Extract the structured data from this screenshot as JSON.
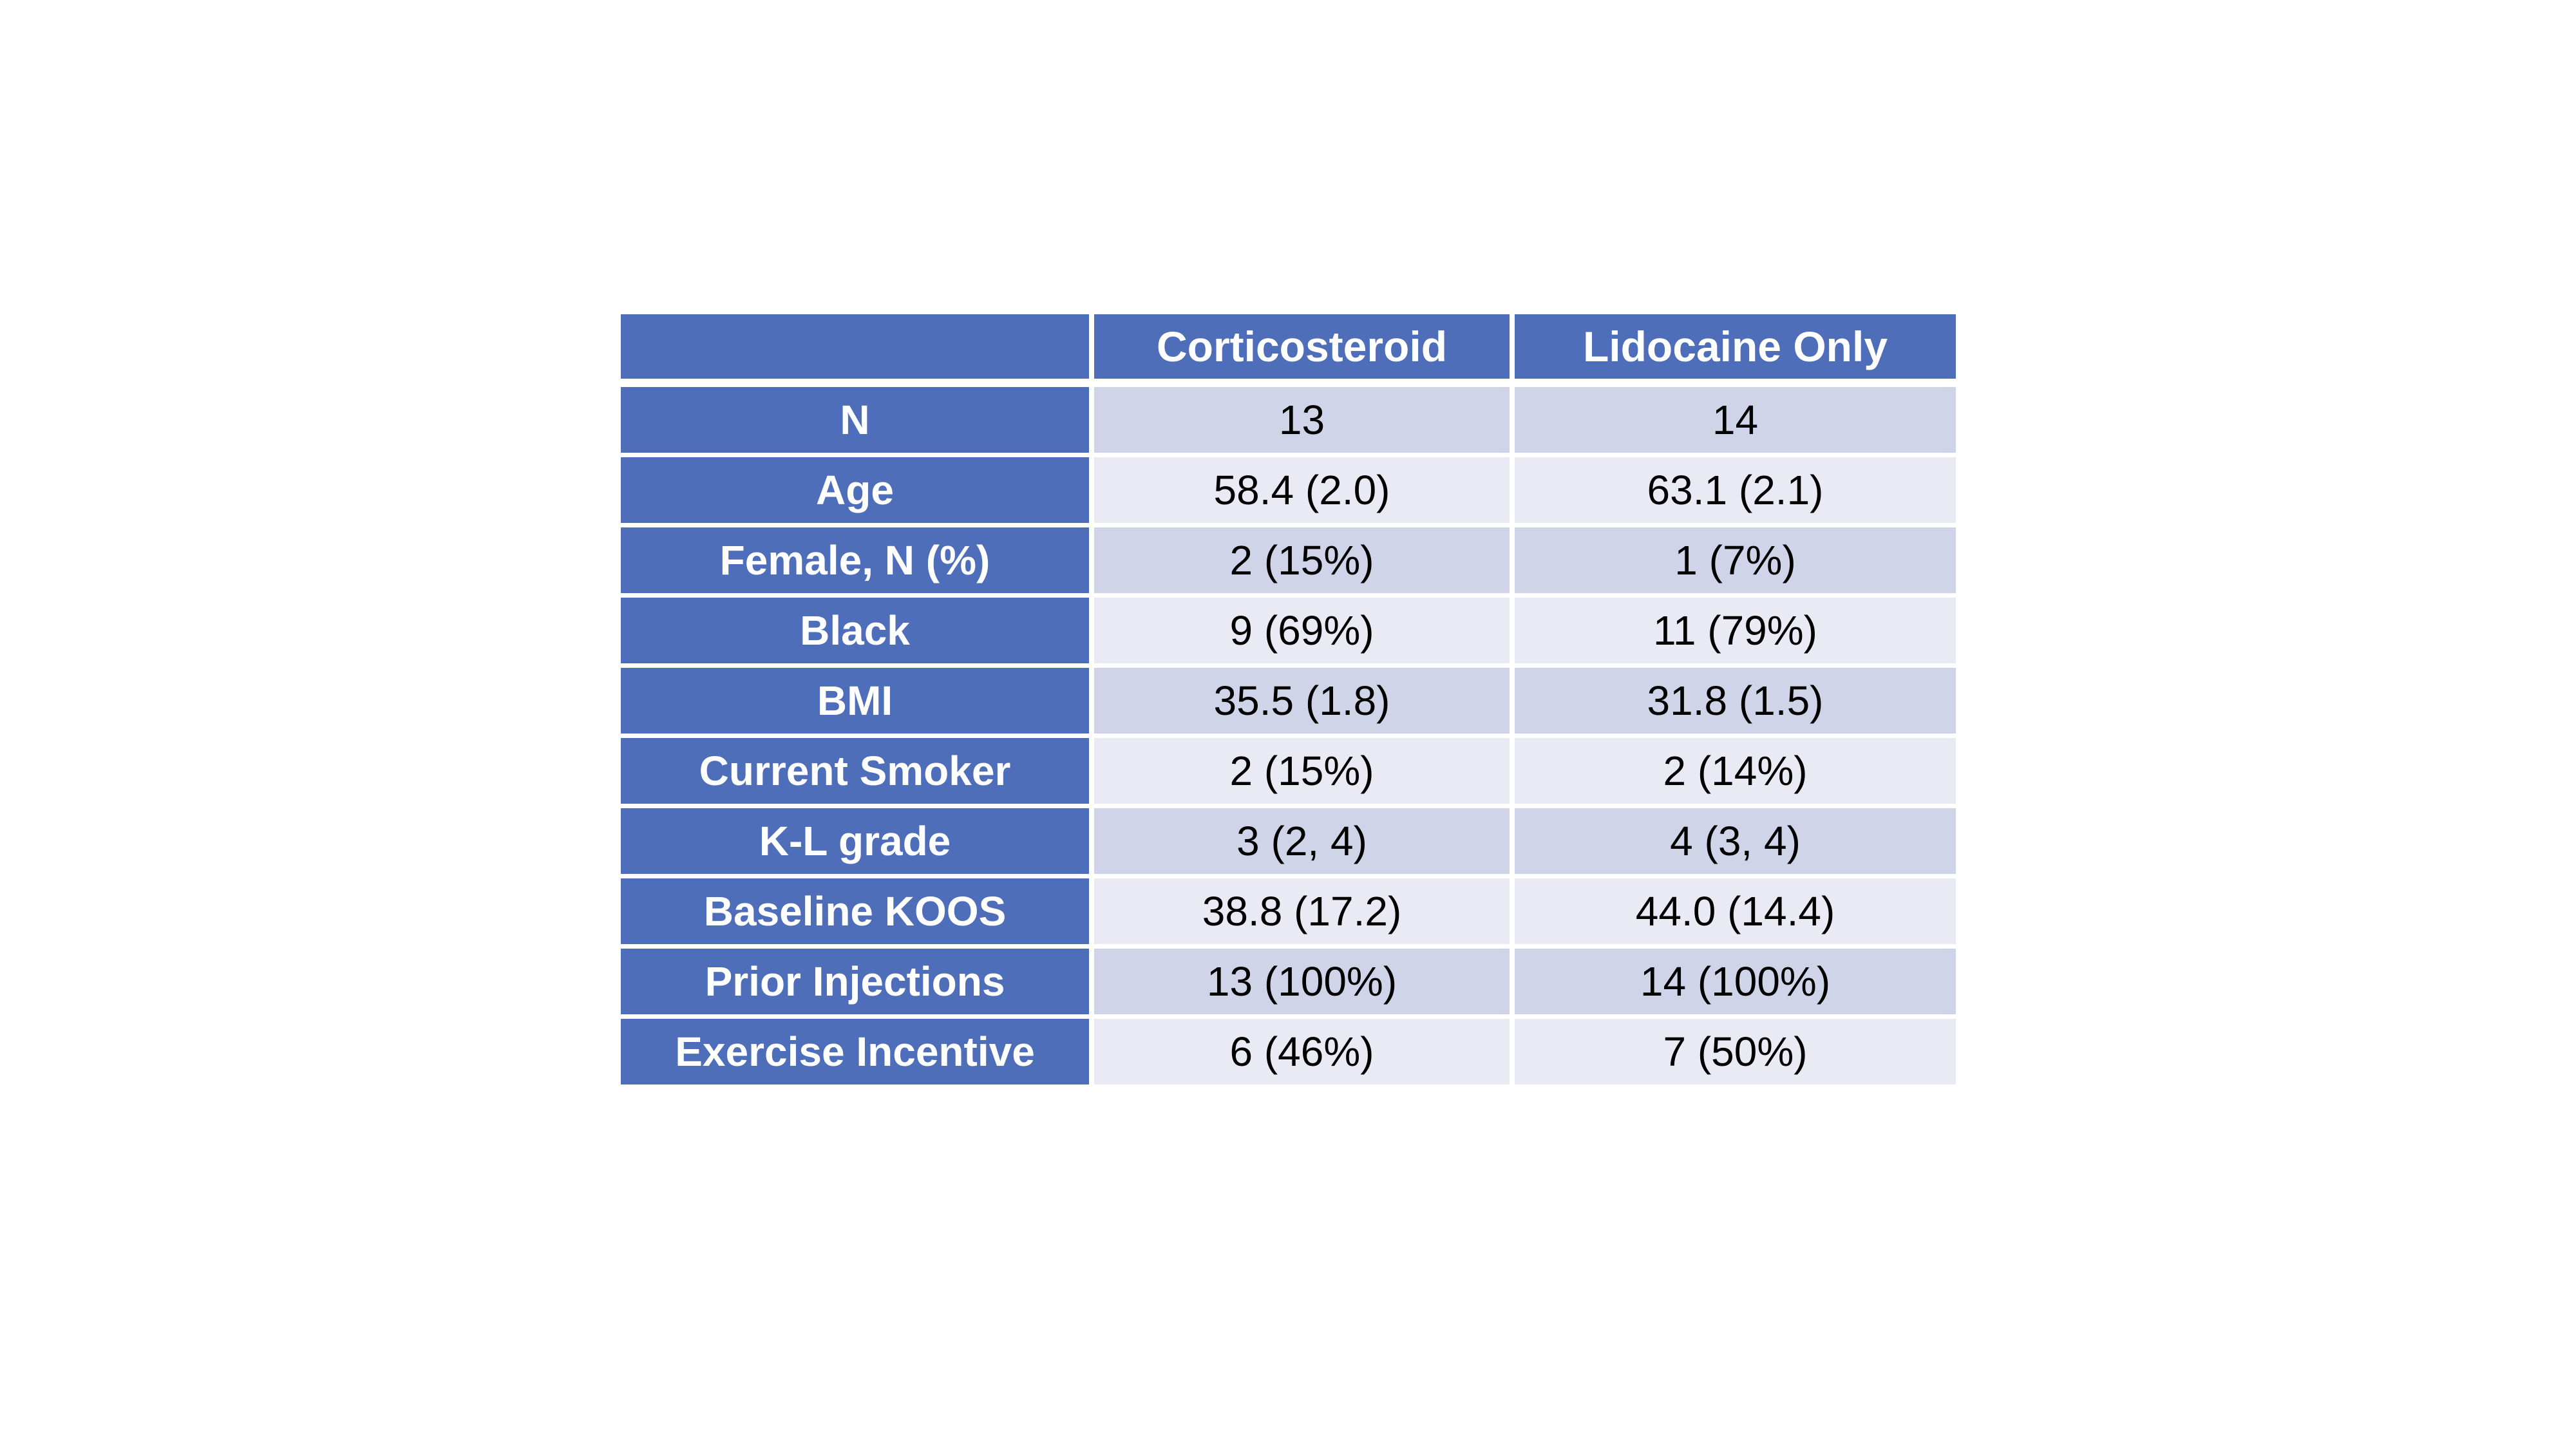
{
  "page": {
    "background": "#FFFFFF"
  },
  "table": {
    "header": {
      "col1_label": "",
      "col2_label": "Corticosteroid",
      "col3_label": "Lidocaine Only"
    },
    "rows": [
      {
        "label": "N",
        "corticosteroid": "13",
        "lidocaine": "14"
      },
      {
        "label": "Age",
        "corticosteroid": "58.4 (2.0)",
        "lidocaine": "63.1 (2.1)"
      },
      {
        "label": "Female, N (%)",
        "corticosteroid": "2 (15%)",
        "lidocaine": "1 (7%)"
      },
      {
        "label": "Black",
        "corticosteroid": "9 (69%)",
        "lidocaine": "11 (79%)"
      },
      {
        "label": "BMI",
        "corticosteroid": "35.5 (1.8)",
        "lidocaine": "31.8 (1.5)"
      },
      {
        "label": "Current Smoker",
        "corticosteroid": "2 (15%)",
        "lidocaine": "2 (14%)"
      },
      {
        "label": "K-L grade",
        "corticosteroid": "3 (2, 4)",
        "lidocaine": "4 (3, 4)"
      },
      {
        "label": "Baseline KOOS",
        "corticosteroid": "38.8 (17.2)",
        "lidocaine": "44.0 (14.4)"
      },
      {
        "label": "Prior Injections",
        "corticosteroid": "13 (100%)",
        "lidocaine": "14 (100%)"
      },
      {
        "label": "Exercise Incentive",
        "corticosteroid": "6 (46%)",
        "lidocaine": "7 (50%)"
      }
    ],
    "colors": {
      "header_blue": "#4E6EB9",
      "band_dark": "#CFD4E8",
      "band_light": "#E9EAF4",
      "header_text": "#FFFFFF",
      "body_text": "#000000",
      "grid_gap_white": "#FFFFFF"
    }
  },
  "chart_data": {
    "type": "table",
    "title": "",
    "columns": [
      "",
      "Corticosteroid",
      "Lidocaine Only"
    ],
    "rows": [
      [
        "N",
        "13",
        "14"
      ],
      [
        "Age",
        "58.4 (2.0)",
        "63.1 (2.1)"
      ],
      [
        "Female, N (%)",
        "2 (15%)",
        "1 (7%)"
      ],
      [
        "Black",
        "9 (69%)",
        "11 (79%)"
      ],
      [
        "BMI",
        "35.5 (1.8)",
        "31.8 (1.5)"
      ],
      [
        "Current Smoker",
        "2 (15%)",
        "2 (14%)"
      ],
      [
        "K-L grade",
        "3 (2, 4)",
        "4 (3, 4)"
      ],
      [
        "Baseline KOOS",
        "38.8 (17.2)",
        "44.0 (14.4)"
      ],
      [
        "Prior Injections",
        "13 (100%)",
        "14 (100%)"
      ],
      [
        "Exercise Incentive",
        "6 (46%)",
        "7 (50%)"
      ]
    ],
    "layout": {
      "header_row_and_first_column": "solid blue fill, white bold text, centered",
      "body_banding": "alternating light-lavender rows starting dark at row N",
      "gridlines": "white gaps between all cells"
    }
  }
}
